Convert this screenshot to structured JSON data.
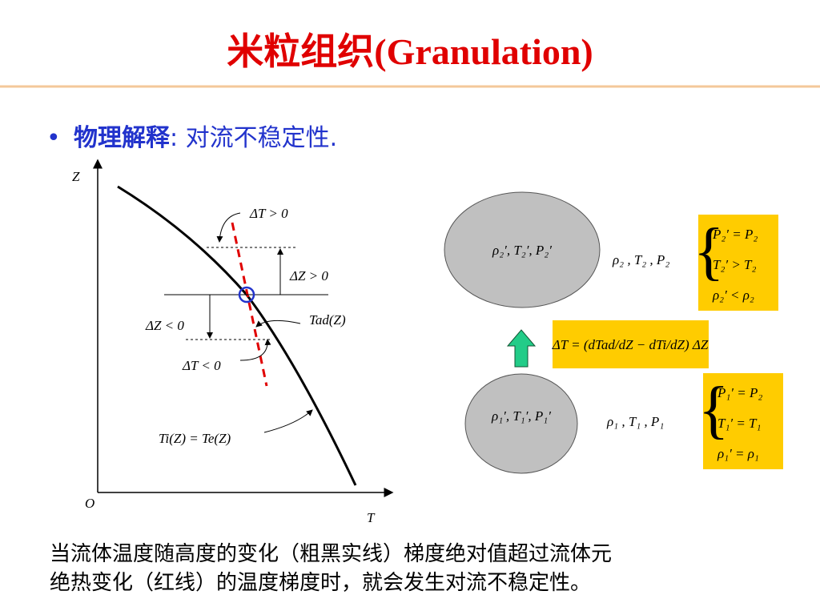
{
  "title": "米粒组织(Granulation)",
  "bullet": {
    "label": "物理解释",
    "text": ": 对流不稳定性."
  },
  "plot": {
    "y_axis": "Z",
    "origin": "O",
    "x_axis": "T",
    "dT_pos": "ΔT > 0",
    "dZ_pos": "ΔZ > 0",
    "dZ_neg": "ΔZ < 0",
    "dT_neg": "ΔT < 0",
    "adiabat": "Tad(Z)",
    "profile": "Ti(Z) = Te(Z)"
  },
  "upper": {
    "blob": "ρ₂′, T₂′, P₂′",
    "ambient": "ρ₂ , T₂ , P₂",
    "conditions": [
      "P₂′ = P₂",
      "T₂′ > T₂",
      "ρ₂′ < ρ₂"
    ]
  },
  "gradient": "ΔT = (dTad/dZ − dTi/dZ) ΔZ",
  "lower": {
    "blob": "ρ₁′, T₁′, P₁′",
    "ambient": "ρ₁ , T₁ , P₁",
    "conditions": [
      "P₁′ = P₂",
      "T₁′ = T₁",
      "ρ₁′ = ρ₁"
    ]
  },
  "caption": [
    "当流体温度随高度的变化（粗黑实线）梯度绝对值超过流体元",
    "绝热变化（红线）的温度梯度时，就会发生对流不稳定性。"
  ]
}
